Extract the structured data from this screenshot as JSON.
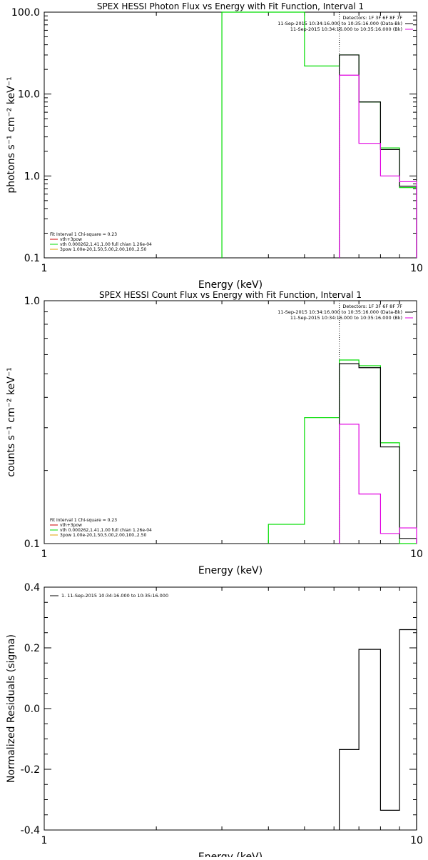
{
  "colors": {
    "black": "#000000",
    "green": "#00dd00",
    "magenta": "#e000e0",
    "red": "#cc0000",
    "orange": "#e0a000"
  },
  "chart_data": [
    {
      "type": "line",
      "title": "SPEX HESSI Photon Flux vs Energy with Fit Function, Interval 1",
      "xlabel": "Energy (keV)",
      "ylabel": "photons s⁻¹ cm⁻² keV⁻¹",
      "xscale": "log",
      "yscale": "log",
      "xlim": [
        1,
        10
      ],
      "ylim": [
        0.1,
        100
      ],
      "xticks": [
        {
          "v": 1,
          "label": "1"
        },
        {
          "v": 10,
          "label": "10"
        }
      ],
      "yticks": [
        {
          "v": 0.1,
          "label": "0.1"
        },
        {
          "v": 1,
          "label": "1.0"
        },
        {
          "v": 10,
          "label": "10.0"
        },
        {
          "v": 100,
          "label": "100.0"
        }
      ],
      "vline": 6.2,
      "info_top": [
        "Detectors: 1F 3F 6F 8F 7F",
        "11-Sep-2015 10:34:16.000 to 10:35:16.000 (Data-Bk)",
        "11-Sep-2015 10:34:16.000 to 10:35:16.000 (Bk)"
      ],
      "info_top_colors": [
        "",
        "black",
        "magenta"
      ],
      "info_bottom": [
        "Fit Interval 1    Chi-square = 0.23",
        "vth+3pow",
        "vth 0.000262,1.41,1.00  full chian 1.26e-04",
        "3pow 1.00e-20,1.50,5.00,2.00,100.,2.50"
      ],
      "info_bottom_colors": [
        "",
        "red",
        "green",
        "orange"
      ],
      "series": [
        {
          "color": "green",
          "edges": [
            3.0,
            4.0,
            5.0,
            6.2,
            7.0,
            8.0,
            9.0,
            10.0
          ],
          "values": [
            100.0,
            100.0,
            22.0,
            30.0,
            8.0,
            2.2,
            0.72
          ]
        },
        {
          "color": "black",
          "edges": [
            6.2,
            7.0,
            8.0,
            9.0,
            10.0
          ],
          "values": [
            30.0,
            8.0,
            2.1,
            0.75
          ]
        },
        {
          "color": "magenta",
          "edges": [
            6.2,
            7.0,
            8.0,
            9.0,
            10.0
          ],
          "values": [
            17.0,
            2.5,
            1.0,
            0.85
          ]
        }
      ]
    },
    {
      "type": "line",
      "title": "SPEX HESSI Count Flux vs Energy with Fit Function, Interval 1",
      "xlabel": "Energy (keV)",
      "ylabel": "counts s⁻¹ cm⁻² keV⁻¹",
      "xscale": "log",
      "yscale": "log",
      "xlim": [
        1,
        10
      ],
      "ylim": [
        0.1,
        1.0
      ],
      "xticks": [
        {
          "v": 1,
          "label": "1"
        },
        {
          "v": 10,
          "label": "10"
        }
      ],
      "yticks": [
        {
          "v": 0.1,
          "label": "0.1"
        },
        {
          "v": 1,
          "label": "1.0"
        }
      ],
      "vline": 6.2,
      "info_top": [
        "Detectors: 1F 3F 6F 8F 7F",
        "11-Sep-2015 10:34:16.000 to 10:35:16.000 (Data-Bk)",
        "11-Sep-2015 10:34:16.000 to 10:35:16.000 (Bk)"
      ],
      "info_top_colors": [
        "",
        "black",
        "magenta"
      ],
      "info_bottom": [
        "Fit Interval 1    Chi-square = 0.23",
        "vth+3pow",
        "vth 0.000262,1.41,1.00  full chian 1.26e-04",
        "3pow 1.00e-20,1.50,5.00,2.00,100.,2.50"
      ],
      "info_bottom_colors": [
        "",
        "red",
        "green",
        "orange"
      ],
      "series": [
        {
          "color": "green",
          "edges": [
            4.0,
            5.0,
            6.2,
            7.0,
            8.0,
            9.0,
            10.0
          ],
          "values": [
            0.12,
            0.33,
            0.57,
            0.54,
            0.26,
            0.1
          ]
        },
        {
          "color": "black",
          "edges": [
            6.2,
            7.0,
            8.0,
            9.0,
            10.0
          ],
          "values": [
            0.55,
            0.53,
            0.25,
            0.105
          ]
        },
        {
          "color": "magenta",
          "edges": [
            6.2,
            7.0,
            8.0,
            9.0,
            10.0
          ],
          "values": [
            0.31,
            0.16,
            0.11,
            0.116
          ]
        }
      ]
    },
    {
      "type": "line",
      "title": "",
      "xlabel": "Energy (keV)",
      "ylabel": "Normalized Residuals (sigma)",
      "xscale": "log",
      "yscale": "linear",
      "xlim": [
        1,
        10
      ],
      "ylim": [
        -0.4,
        0.4
      ],
      "xticks": [
        {
          "v": 1,
          "label": "1"
        },
        {
          "v": 10,
          "label": "10"
        }
      ],
      "yticks": [
        {
          "v": -0.4,
          "label": "-0.4"
        },
        {
          "v": -0.2,
          "label": "-0.2"
        },
        {
          "v": 0,
          "label": "0.0"
        },
        {
          "v": 0.2,
          "label": "0.2"
        },
        {
          "v": 0.4,
          "label": "0.4"
        }
      ],
      "legend": "1. 11-Sep-2015 10:34:16.000 to 10:35:16.000",
      "series": [
        {
          "color": "black",
          "edges": [
            6.2,
            7.0,
            8.0,
            9.0,
            10.0
          ],
          "values": [
            -0.135,
            0.195,
            -0.335,
            0.26
          ],
          "start_from": -0.4
        }
      ]
    }
  ]
}
